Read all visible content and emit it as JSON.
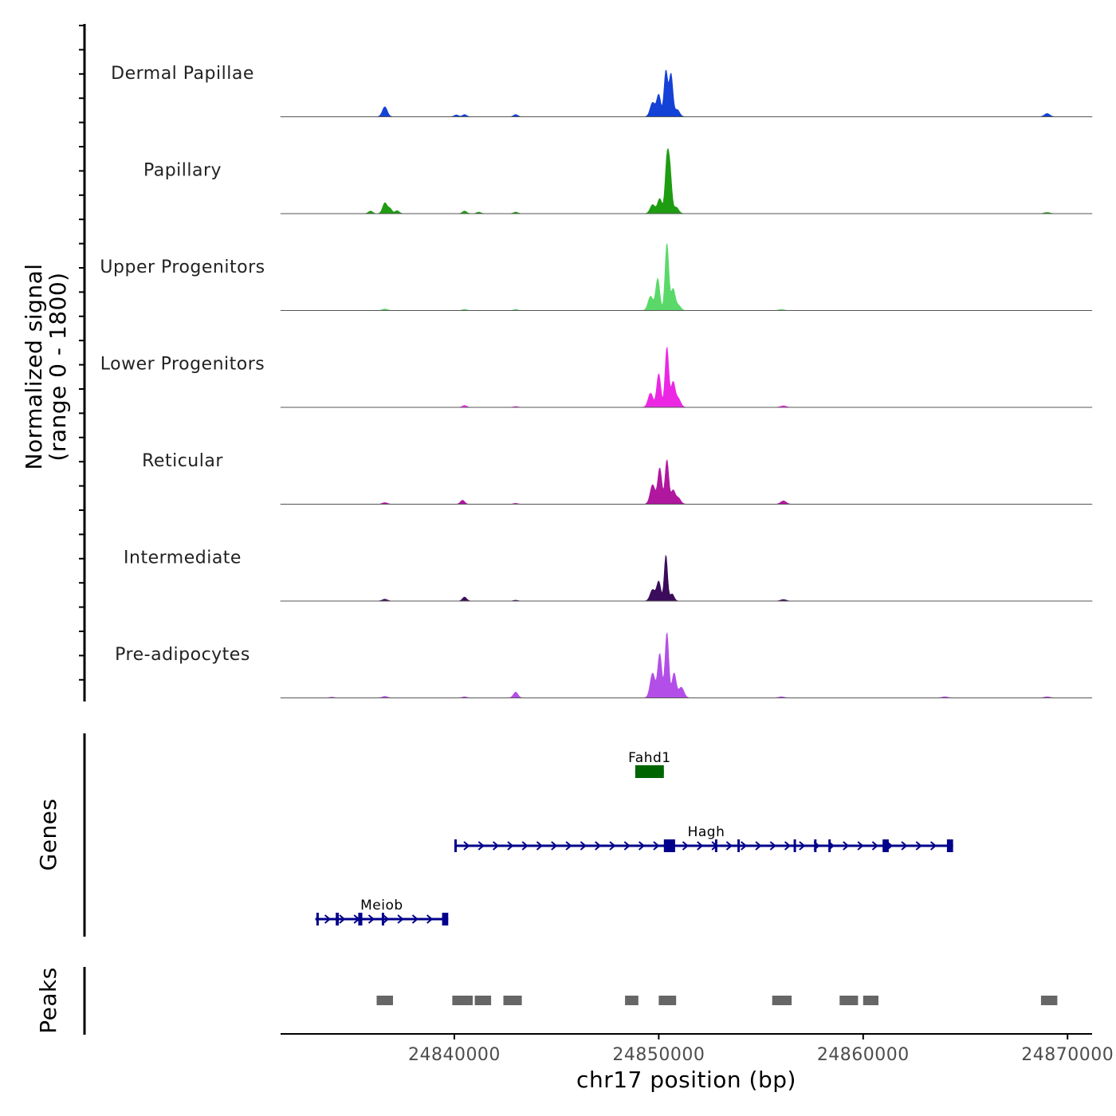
{
  "chart_data": {
    "type": "area",
    "chromosome": "chr17",
    "xlabel": "chr17 position (bp)",
    "ylabel_line1": "Normalized signal",
    "ylabel_line2": "(range 0 - 1800)",
    "ylim": [
      0,
      1800
    ],
    "xlim": [
      24831500,
      24871200
    ],
    "x_ticks": [
      24840000,
      24850000,
      24860000,
      24870000
    ],
    "x_tick_labels": [
      "24840000",
      "24850000",
      "24860000",
      "24870000"
    ],
    "tracks": [
      {
        "name": "Dermal Papillae",
        "color": "#1441d6",
        "peaks": [
          [
            24836600,
            280,
            120
          ],
          [
            24840100,
            50,
            100
          ],
          [
            24840500,
            60,
            100
          ],
          [
            24843000,
            60,
            100
          ],
          [
            24849700,
            400,
            120
          ],
          [
            24850000,
            620,
            100
          ],
          [
            24850350,
            1300,
            90
          ],
          [
            24850600,
            1200,
            90
          ],
          [
            24850900,
            200,
            120
          ],
          [
            24869000,
            90,
            130
          ]
        ]
      },
      {
        "name": "Papillary",
        "color": "#1e9c12",
        "peaks": [
          [
            24835900,
            70,
            100
          ],
          [
            24836600,
            300,
            110
          ],
          [
            24836850,
            140,
            100
          ],
          [
            24837200,
            80,
            100
          ],
          [
            24840500,
            70,
            100
          ],
          [
            24841200,
            40,
            100
          ],
          [
            24843000,
            40,
            100
          ],
          [
            24849700,
            250,
            120
          ],
          [
            24850050,
            420,
            110
          ],
          [
            24850400,
            1450,
            90
          ],
          [
            24850550,
            1100,
            90
          ],
          [
            24850850,
            180,
            120
          ],
          [
            24869000,
            30,
            130
          ]
        ]
      },
      {
        "name": "Upper Progenitors",
        "color": "#5ad96a",
        "peaks": [
          [
            24836600,
            40,
            120
          ],
          [
            24840500,
            30,
            100
          ],
          [
            24843000,
            25,
            100
          ],
          [
            24849600,
            400,
            120
          ],
          [
            24849950,
            900,
            100
          ],
          [
            24850400,
            1900,
            90
          ],
          [
            24850700,
            600,
            100
          ],
          [
            24850950,
            150,
            120
          ],
          [
            24856000,
            25,
            130
          ]
        ]
      },
      {
        "name": "Lower Progenitors",
        "color": "#ec27e4",
        "peaks": [
          [
            24840500,
            50,
            100
          ],
          [
            24843000,
            20,
            100
          ],
          [
            24849600,
            400,
            120
          ],
          [
            24850000,
            950,
            100
          ],
          [
            24850400,
            1700,
            90
          ],
          [
            24850700,
            700,
            100
          ],
          [
            24850950,
            250,
            120
          ],
          [
            24856100,
            40,
            130
          ]
        ]
      },
      {
        "name": "Reticular",
        "color": "#b1179e",
        "peaks": [
          [
            24836600,
            40,
            120
          ],
          [
            24840400,
            110,
            100
          ],
          [
            24843000,
            20,
            100
          ],
          [
            24849700,
            550,
            120
          ],
          [
            24850050,
            1020,
            100
          ],
          [
            24850400,
            1250,
            90
          ],
          [
            24850700,
            380,
            100
          ],
          [
            24850950,
            180,
            120
          ],
          [
            24856100,
            90,
            130
          ]
        ]
      },
      {
        "name": "Intermediate",
        "color": "#3b0c5c",
        "peaks": [
          [
            24836600,
            50,
            120
          ],
          [
            24840500,
            110,
            100
          ],
          [
            24843000,
            20,
            100
          ],
          [
            24849700,
            320,
            120
          ],
          [
            24850000,
            550,
            100
          ],
          [
            24850350,
            1300,
            80
          ],
          [
            24850650,
            200,
            100
          ],
          [
            24856100,
            40,
            130
          ]
        ]
      },
      {
        "name": "Pre-adipocytes",
        "color": "#b44ee8",
        "peaks": [
          [
            24834000,
            20,
            100
          ],
          [
            24836600,
            40,
            120
          ],
          [
            24840500,
            30,
            100
          ],
          [
            24843000,
            160,
            110
          ],
          [
            24849700,
            700,
            120
          ],
          [
            24850050,
            1250,
            100
          ],
          [
            24850400,
            1850,
            90
          ],
          [
            24850750,
            700,
            100
          ],
          [
            24851100,
            300,
            130
          ],
          [
            24856000,
            30,
            130
          ],
          [
            24864000,
            30,
            130
          ],
          [
            24869000,
            30,
            130
          ]
        ]
      }
    ],
    "genes": [
      {
        "name": "Fahd1",
        "color": "#006400",
        "strand": "+",
        "start": 24848850,
        "end": 24850250,
        "exons": [
          [
            24848850,
            24850250
          ]
        ]
      },
      {
        "name": "Hagh",
        "color": "#00008b",
        "strand": "+",
        "start": 24840000,
        "end": 24864400,
        "exons": [
          [
            24840000,
            24840100
          ],
          [
            24850250,
            24850800
          ],
          [
            24852750,
            24852850
          ],
          [
            24853850,
            24853950
          ],
          [
            24856600,
            24856680
          ],
          [
            24857600,
            24857680
          ],
          [
            24858300,
            24858380
          ],
          [
            24860950,
            24861250
          ],
          [
            24864100,
            24864400
          ]
        ]
      },
      {
        "name": "Meiob",
        "color": "#00008b",
        "strand": "+",
        "start": 24833200,
        "end": 24839700,
        "exons": [
          [
            24833250,
            24833300
          ],
          [
            24834200,
            24834350
          ],
          [
            24835300,
            24835500
          ],
          [
            24836450,
            24836550
          ],
          [
            24839400,
            24839700
          ]
        ]
      }
    ],
    "peaks_track": {
      "label": "Peaks",
      "color": "#666666",
      "regions": [
        [
          24836200,
          24837000
        ],
        [
          24839900,
          24840900
        ],
        [
          24841000,
          24841800
        ],
        [
          24842400,
          24843300
        ],
        [
          24848350,
          24849000
        ],
        [
          24850000,
          24850850
        ],
        [
          24855550,
          24856500
        ],
        [
          24858850,
          24859750
        ],
        [
          24860000,
          24860750
        ],
        [
          24868700,
          24869500
        ]
      ]
    },
    "genes_label": "Genes"
  }
}
